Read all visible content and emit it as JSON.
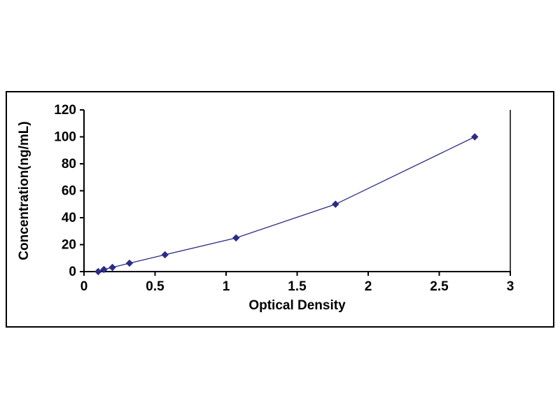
{
  "page": {
    "background": "#ffffff"
  },
  "chart_data": {
    "type": "line",
    "title": "",
    "xlabel": "Optical Density",
    "ylabel": "Concentration(ng/mL)",
    "x": [
      0.1,
      0.14,
      0.2,
      0.32,
      0.57,
      1.07,
      1.77,
      2.75
    ],
    "y": [
      0,
      1.56,
      3.12,
      6.25,
      12.5,
      25,
      50,
      100
    ],
    "xlim": [
      0,
      3
    ],
    "ylim": [
      0,
      120
    ],
    "xticks": [
      0,
      0.5,
      1,
      1.5,
      2,
      2.5,
      3
    ],
    "xtick_labels": [
      "0",
      "0.5",
      "1",
      "1.5",
      "2",
      "2.5",
      "3"
    ],
    "yticks": [
      0,
      20,
      40,
      60,
      80,
      100,
      120
    ],
    "ytick_labels": [
      "0",
      "20",
      "40",
      "60",
      "80",
      "100",
      "120"
    ],
    "grid": false,
    "legend": null,
    "marker": "diamond",
    "series_color": "#2c2c86",
    "axis_color": "#000000",
    "text_color": "#000000"
  }
}
